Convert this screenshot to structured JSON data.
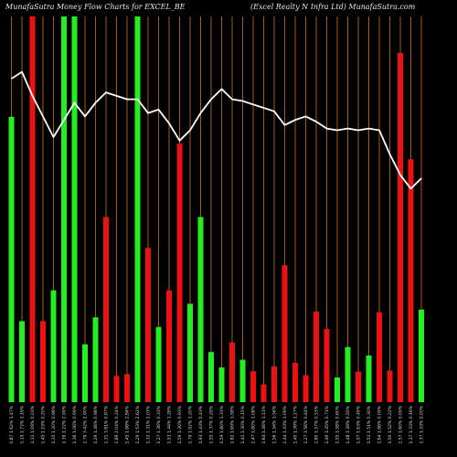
{
  "header": {
    "title_left": "MunafaSutra  Money Flow  Charts for EXCEL_BE",
    "title_right": "(Excel Realty N  Infra  Ltd) MunafaSutra.com"
  },
  "colors": {
    "background": "#000000",
    "grid": "#b8661c",
    "up": "#22ee22",
    "down": "#ee1111",
    "line": "#ffffff"
  },
  "chart_data": {
    "type": "bar",
    "title": "MunafaSutra  Money Flow  Charts for EXCEL_BE",
    "subtitle": "(Excel Realty N  Infra  Ltd) MunafaSutra.com",
    "categories": [
      "0.87 1.62% 1.47%",
      "1.15 1.72% 1.19%",
      "1.11 1.09% 0.03%",
      "1.45 1.19% 0.20%",
      "1.35 1.20% 0.98%",
      "1.39 1.22% 2.99%",
      "1.36 1.06% 0.99%",
      "1.79 3.42% 2.90%",
      "1.29 1.46% 0.98%",
      "1.31 3.81% 0.87%",
      "1.89 2.04% 0.24%",
      "1.45 1.88% 2.84%",
      "1.29 1.53% 2.62%",
      "1.32 1.31% 2.03%",
      "1.27 1.36% 0.33%",
      "1.53 1.44% 1.28%",
      "1.59 1.30% 0.93%",
      "1.79 1.92% 1.20%",
      "1.93 1.43% 0.43%",
      "1.55 1.37% 0.29%",
      "1.59 1.80% 1.33%",
      "1.82 1.69% 1.58%",
      "1.41 1.30% 0.15%",
      "1.47 1.80% 1.08%",
      "1.64 1.46% 1.11%",
      "1.56 1.34% 1.56%",
      "1.44 1.43% 1.09%",
      "1.40 1.38% 1.27%",
      "1.27 1.56% 0.44%",
      "1.80 1.57% 0.53%",
      "1.49 1.45% 0.71%",
      "1.55 1.58% 0.60%",
      "1.48 1.38% 0.50%",
      "1.57 1.63% 0.49%",
      "1.51 1.51% 0.30%",
      "1.64 1.86% 0.09%",
      "1.50 1.52% 0.22%",
      "1.57 1.60% 0.09%",
      "1.37 1.33% 0.16%",
      "1.37 1.33% 0.00%"
    ],
    "values": [
      74,
      21,
      100,
      21,
      29,
      100,
      100,
      15,
      22,
      48,
      6.8,
      7.3,
      100,
      40,
      19.5,
      29,
      67,
      25.5,
      48,
      13,
      9,
      15.5,
      11,
      8,
      4.6,
      9.3,
      35.5,
      10.2,
      7,
      23.5,
      19,
      6.4,
      14.3,
      7.9,
      12.1,
      23.3,
      8.2,
      90.5,
      63,
      24
    ],
    "colors": [
      "green",
      "green",
      "red",
      "red",
      "green",
      "green",
      "green",
      "green",
      "green",
      "red",
      "red",
      "red",
      "green",
      "red",
      "green",
      "red",
      "red",
      "green",
      "green",
      "green",
      "green",
      "red",
      "green",
      "red",
      "red",
      "red",
      "red",
      "red",
      "red",
      "red",
      "red",
      "green",
      "green",
      "red",
      "green",
      "red",
      "red",
      "red",
      "red",
      "green"
    ],
    "line": [
      92,
      94,
      87,
      81,
      75,
      80,
      85,
      81,
      85,
      88,
      87,
      86,
      86,
      82,
      83,
      79,
      74,
      77,
      82,
      86,
      89,
      86,
      85.5,
      84.5,
      83.5,
      82.5,
      78.5,
      80,
      81,
      79.5,
      77.5,
      77,
      77.5,
      77,
      77.5,
      77,
      70,
      64,
      60,
      63
    ],
    "ylim": [
      0,
      100
    ],
    "line_ylim": [
      0,
      100
    ],
    "grid": "vertical",
    "xlabel": "",
    "ylabel": ""
  }
}
